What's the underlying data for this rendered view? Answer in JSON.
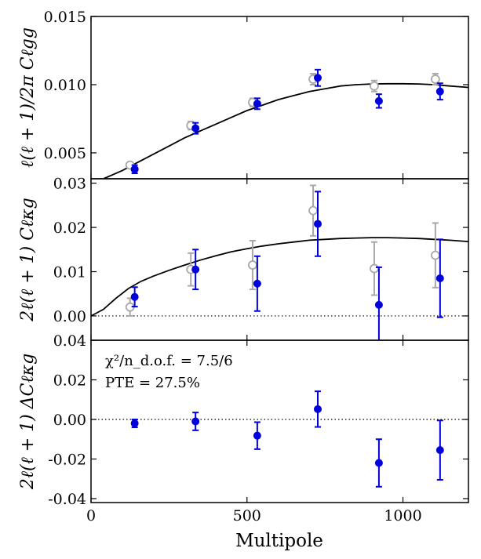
{
  "chart_data": {
    "type": "scatter",
    "xlabel": "Multipole",
    "xlim": [
      0,
      1210
    ],
    "x_ticks": [
      0,
      500,
      1000
    ],
    "x_tick_labels": [
      "0",
      "500",
      "1000"
    ],
    "colors": {
      "blue": "#0000dd",
      "gray": "#a8a8a8",
      "black": "#000000"
    },
    "panels": [
      {
        "id": "gg",
        "ylabel": "ℓ(ℓ+1)/2πC_ℓ^gg",
        "ylabel_display": "ℓ(ℓ + 1)/2π Cℓgg",
        "ylim": [
          0.0031,
          0.015
        ],
        "y_ticks": [
          0.005,
          0.01,
          0.015
        ],
        "y_tick_labels": [
          "0.005",
          "0.010",
          "0.015"
        ],
        "zero_line": false,
        "model": {
          "x": [
            40,
            100,
            150,
            200,
            250,
            300,
            350,
            400,
            450,
            500,
            550,
            600,
            650,
            700,
            750,
            800,
            850,
            900,
            950,
            1000,
            1050,
            1100,
            1150,
            1210
          ],
          "y": [
            0.0031,
            0.0037,
            0.0043,
            0.0049,
            0.0055,
            0.0061,
            0.0066,
            0.0071,
            0.0076,
            0.0081,
            0.0085,
            0.0089,
            0.0092,
            0.0095,
            0.0097,
            0.0099,
            0.01,
            0.01005,
            0.01007,
            0.01007,
            0.01005,
            0.01,
            0.0099,
            0.0098
          ]
        },
        "series": [
          {
            "name": "gray",
            "marker": "open-circle",
            "x": [
              125,
              320,
              518,
              712,
              908,
              1104
            ],
            "y": [
              0.0041,
              0.007,
              0.0087,
              0.0104,
              0.0099,
              0.0104
            ],
            "err": [
              0.0002,
              0.0003,
              0.0003,
              0.0004,
              0.0004,
              0.0004
            ]
          },
          {
            "name": "blue",
            "marker": "filled-circle",
            "x": [
              140,
              335,
              533,
              727,
              923,
              1119
            ],
            "y": [
              0.0038,
              0.0068,
              0.0086,
              0.0105,
              0.0088,
              0.0095
            ],
            "err": [
              0.0003,
              0.0004,
              0.0004,
              0.0006,
              0.0005,
              0.0006
            ]
          }
        ]
      },
      {
        "id": "kg",
        "ylabel": "2ℓ(ℓ+1)C_ℓ^κg",
        "ylabel_display": "2ℓ(ℓ + 1) Cℓκg",
        "ylim": [
          -0.0055,
          0.031
        ],
        "y_ticks": [
          0.0,
          0.01,
          0.02,
          0.03
        ],
        "y_tick_labels": [
          "0.00",
          "0.01",
          "0.02",
          "0.03"
        ],
        "zero_line": true,
        "model": {
          "x": [
            0,
            40,
            80,
            120,
            160,
            200,
            250,
            300,
            350,
            400,
            450,
            500,
            550,
            600,
            650,
            700,
            750,
            800,
            850,
            900,
            950,
            1000,
            1050,
            1100,
            1150,
            1210
          ],
          "y": [
            0.0,
            0.0015,
            0.004,
            0.0062,
            0.0078,
            0.009,
            0.0103,
            0.0115,
            0.0126,
            0.0136,
            0.0145,
            0.0152,
            0.0158,
            0.0163,
            0.0167,
            0.0171,
            0.0173,
            0.0175,
            0.0176,
            0.0177,
            0.0177,
            0.0176,
            0.0175,
            0.0173,
            0.0171,
            0.0168
          ]
        },
        "series": [
          {
            "name": "gray",
            "marker": "open-circle",
            "x": [
              125,
              320,
              518,
              712,
              908,
              1104
            ],
            "y": [
              0.002,
              0.0105,
              0.0115,
              0.0238,
              0.0107,
              0.0137
            ],
            "err": [
              0.002,
              0.0037,
              0.0055,
              0.0057,
              0.006,
              0.0073
            ]
          },
          {
            "name": "blue",
            "marker": "filled-circle",
            "x": [
              140,
              335,
              533,
              727,
              923,
              1119
            ],
            "y": [
              0.0043,
              0.0105,
              0.0073,
              0.0208,
              0.0025,
              0.0085
            ],
            "err": [
              0.0022,
              0.0045,
              0.0062,
              0.0073,
              0.0085,
              0.0088
            ]
          }
        ]
      },
      {
        "id": "residual",
        "ylabel": "2ℓ(ℓ+1)ΔC_ℓ^κg",
        "ylabel_display": "2ℓ(ℓ + 1) ΔCℓκg",
        "ylim": [
          -0.042,
          0.04
        ],
        "y_ticks": [
          -0.04,
          -0.02,
          0.0,
          0.02,
          0.04
        ],
        "y_tick_labels": [
          "-0.04",
          "-0.02",
          "0.00",
          "0.02",
          "0.04"
        ],
        "zero_line": true,
        "annotation_chi2": "χ²/n_d.o.f. = 7.5/6",
        "annotation_pte": "PTE = 27.5%",
        "series": [
          {
            "name": "blue",
            "marker": "filled-circle",
            "x": [
              140,
              335,
              533,
              727,
              923,
              1119
            ],
            "y": [
              -0.002,
              -0.001,
              -0.0082,
              0.0052,
              -0.022,
              -0.0155
            ],
            "err": [
              0.002,
              0.0045,
              0.0068,
              0.009,
              0.012,
              0.015
            ]
          }
        ]
      }
    ]
  }
}
